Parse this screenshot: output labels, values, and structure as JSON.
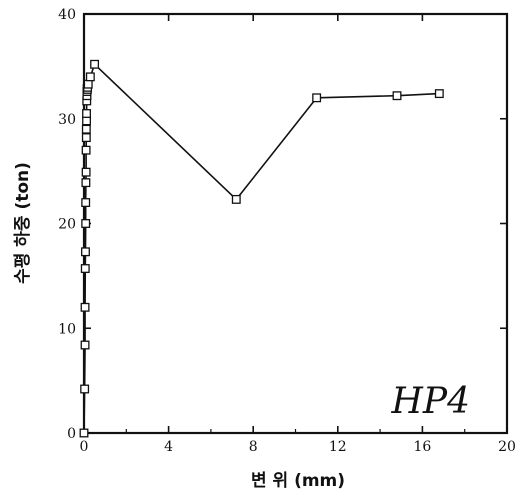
{
  "chart_data": {
    "type": "scatter",
    "title": "",
    "xlabel": "변 위 (mm)",
    "ylabel": "수평 하중 (ton)",
    "annotation": "HP4",
    "xlim": [
      0,
      20
    ],
    "ylim": [
      0,
      40
    ],
    "xticks": [
      0,
      4,
      8,
      12,
      16,
      20
    ],
    "yticks": [
      0,
      10,
      20,
      30,
      40
    ],
    "grid": false,
    "series": [
      {
        "x": [
          0.0,
          0.03,
          0.05,
          0.05,
          0.06,
          0.07,
          0.08,
          0.08,
          0.09,
          0.1,
          0.1,
          0.11,
          0.11,
          0.12,
          0.12,
          0.13,
          0.14,
          0.14,
          0.15,
          0.16,
          0.17,
          0.2,
          0.3,
          0.5,
          7.2,
          11.0,
          14.8,
          16.8
        ],
        "y": [
          0.0,
          4.2,
          8.4,
          12.0,
          15.7,
          17.3,
          20.0,
          22.0,
          23.9,
          24.9,
          27.0,
          28.2,
          29.0,
          29.8,
          30.5,
          31.7,
          32.2,
          32.6,
          32.9,
          32.8,
          33.0,
          33.3,
          34.0,
          35.2,
          22.3,
          32.0,
          32.2,
          32.4
        ]
      }
    ]
  }
}
